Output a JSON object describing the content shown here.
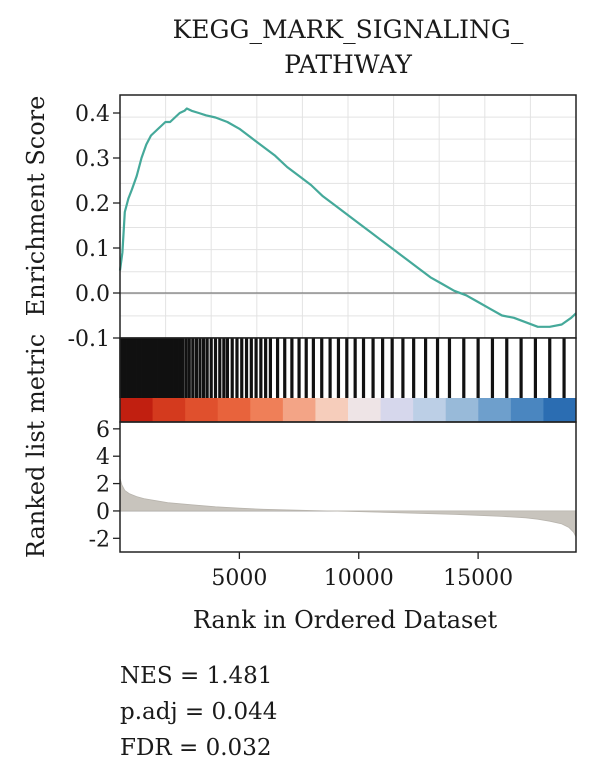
{
  "chart_data": {
    "type": "line",
    "title_lines": [
      "KEGG_MARK_SIGNALING_",
      "PATHWAY"
    ],
    "xlabel": "Rank in Ordered Dataset",
    "xlim": [
      0,
      19100
    ],
    "xticks": [
      5000,
      10000,
      15000
    ],
    "xtick_labels": [
      "5000",
      "10000",
      "15000"
    ],
    "enrichment": {
      "ylabel": "Enrichment Score",
      "ylim": [
        -0.1,
        0.44
      ],
      "yticks": [
        0.4,
        0.3,
        0.2,
        0.1,
        0.0,
        -0.1
      ],
      "ytick_labels": [
        "0.4",
        "0.3",
        "0.2",
        "0.1",
        "0.0",
        "-0.1"
      ],
      "grid": true,
      "zero_line": 0.0,
      "line_color": "#45a99a",
      "series": [
        {
          "x": [
            0,
            100,
            200,
            350,
            500,
            700,
            900,
            1100,
            1300,
            1500,
            1700,
            1900,
            2100,
            2300,
            2500,
            2700,
            2800,
            3000,
            3300,
            3600,
            4000,
            4500,
            5000,
            5500,
            6000,
            6500,
            7000,
            7500,
            8000,
            8500,
            9000,
            9500,
            10000,
            10500,
            11000,
            11500,
            12000,
            12500,
            13000,
            13500,
            14000,
            14500,
            15000,
            15500,
            16000,
            16500,
            17000,
            17500,
            18000,
            18500,
            18900,
            19100
          ],
          "y": [
            0.05,
            0.09,
            0.18,
            0.21,
            0.23,
            0.26,
            0.3,
            0.33,
            0.35,
            0.36,
            0.37,
            0.38,
            0.38,
            0.39,
            0.4,
            0.405,
            0.41,
            0.405,
            0.4,
            0.395,
            0.39,
            0.38,
            0.365,
            0.345,
            0.325,
            0.305,
            0.28,
            0.26,
            0.24,
            0.215,
            0.195,
            0.175,
            0.155,
            0.135,
            0.115,
            0.095,
            0.075,
            0.055,
            0.035,
            0.02,
            0.005,
            -0.005,
            -0.02,
            -0.035,
            -0.05,
            -0.055,
            -0.065,
            -0.075,
            -0.075,
            -0.07,
            -0.055,
            -0.045
          ]
        }
      ]
    },
    "hit_ticks": [
      120,
      280,
      470,
      600,
      760,
      880,
      1000,
      1110,
      1250,
      1400,
      1510,
      1660,
      1800,
      1950,
      2080,
      2200,
      2350,
      2500,
      2620,
      2760,
      2900,
      3050,
      3200,
      3350,
      3500,
      3650,
      3820,
      4000,
      4180,
      4350,
      4500,
      4700,
      4900,
      5100,
      5300,
      5500,
      5700,
      5900,
      6100,
      6300,
      6600,
      6900,
      7200,
      7500,
      7800,
      8100,
      8450,
      8800,
      9150,
      9500,
      9850,
      10200,
      10600,
      11000,
      11400,
      11850,
      12300,
      12800,
      13300,
      13800,
      14400,
      15000,
      15600,
      16200,
      16800,
      17400,
      18000,
      18600
    ],
    "ranked_metric": {
      "ylabel": "Ranked list metric",
      "ylim": [
        -3,
        6.5
      ],
      "yticks": [
        6,
        4,
        2,
        0,
        -2
      ],
      "ytick_labels": [
        "6",
        "4",
        "2",
        "0",
        "-2"
      ],
      "fill_color": "#c8c4bd",
      "x": [
        0,
        80,
        200,
        400,
        700,
        1000,
        1500,
        2000,
        3000,
        4000,
        5000,
        6000,
        8000,
        10000,
        12000,
        14000,
        15000,
        16000,
        17000,
        17500,
        18000,
        18500,
        18800,
        19000,
        19100
      ],
      "y": [
        2.4,
        1.9,
        1.5,
        1.25,
        1.05,
        0.9,
        0.75,
        0.6,
        0.45,
        0.3,
        0.2,
        0.12,
        0.03,
        -0.05,
        -0.15,
        -0.25,
        -0.32,
        -0.4,
        -0.5,
        -0.6,
        -0.75,
        -0.95,
        -1.2,
        -1.55,
        -1.9
      ]
    },
    "colorbar": [
      "#c11f10",
      "#d43a1e",
      "#e0502d",
      "#e8633c",
      "#ef7f58",
      "#f3a486",
      "#f6cdbb",
      "#eee4e6",
      "#d6d7ec",
      "#bccfe6",
      "#98bad9",
      "#6e9fcc",
      "#4a86c0",
      "#2b6db2"
    ]
  },
  "stats": {
    "nes": "NES = 1.481",
    "padj": "p.adj = 0.044",
    "fdr": "FDR = 0.032"
  }
}
